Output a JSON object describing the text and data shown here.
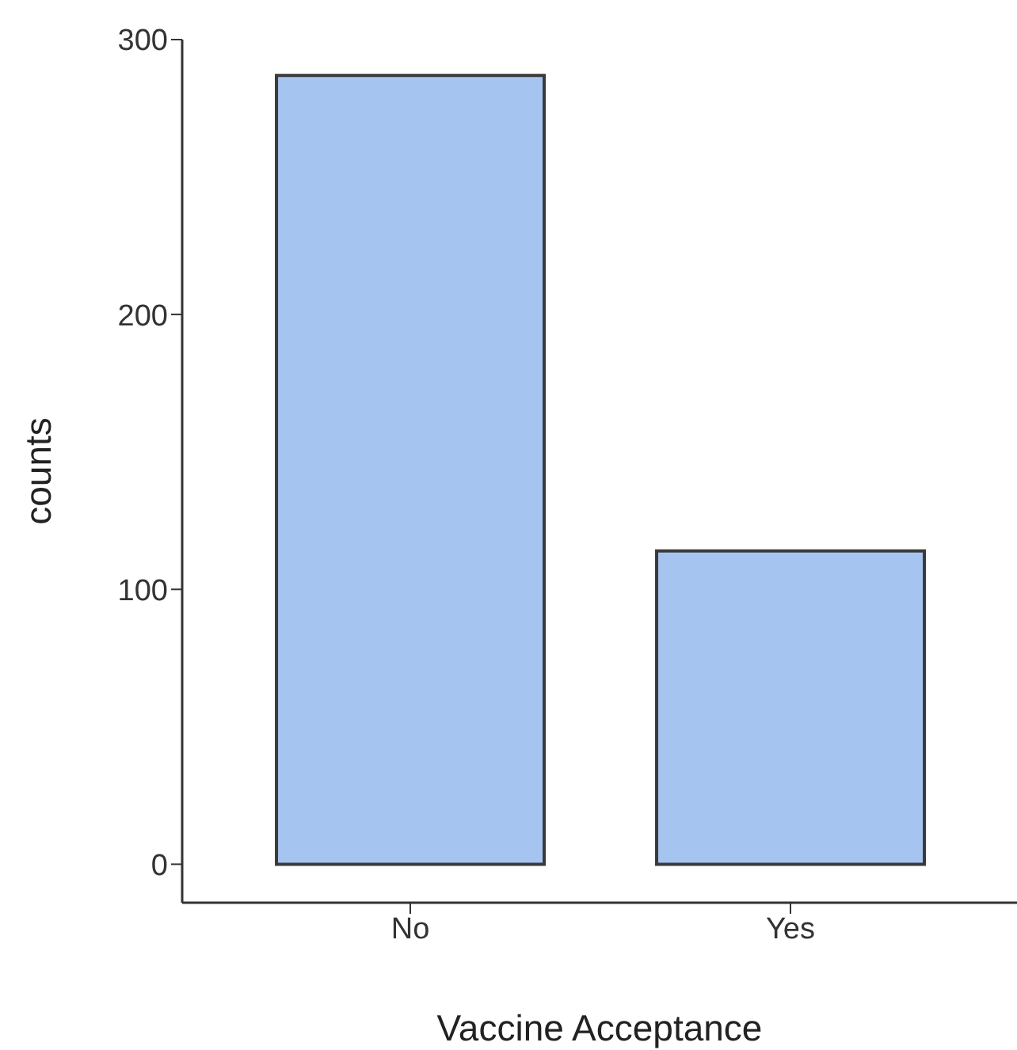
{
  "chart_data": {
    "type": "bar",
    "xlabel": "Vaccine Acceptance",
    "ylabel": "counts",
    "categories": [
      "No",
      "Yes"
    ],
    "values": [
      287,
      114
    ],
    "color": "#a6c4f0",
    "ylim": [
      -14,
      300
    ],
    "yticks": [
      0,
      100,
      200,
      300
    ],
    "grid": false
  }
}
